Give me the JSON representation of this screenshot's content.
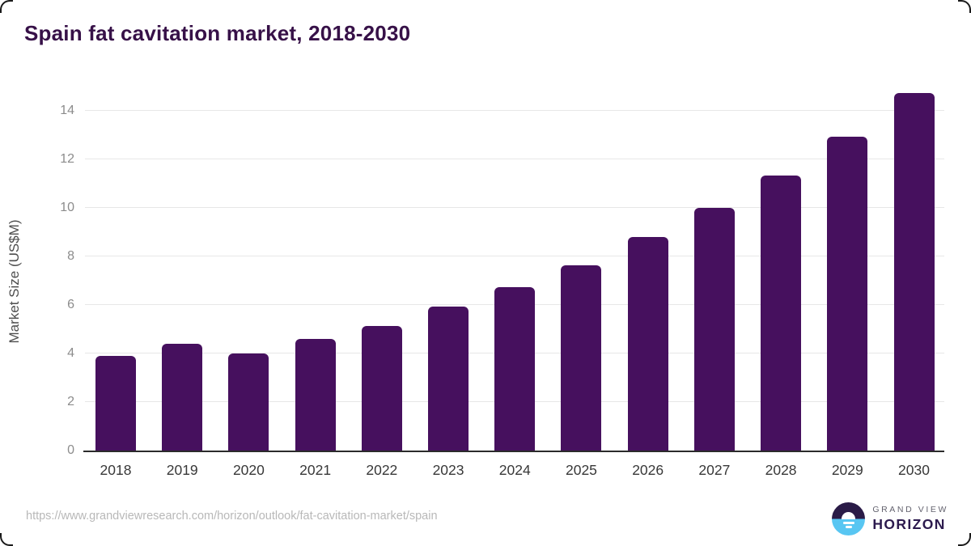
{
  "title": "Spain fat cavitation market, 2018-2030",
  "chart_data": {
    "type": "bar",
    "title": "Spain fat cavitation market, 2018-2030",
    "categories": [
      "2018",
      "2019",
      "2020",
      "2021",
      "2022",
      "2023",
      "2024",
      "2025",
      "2026",
      "2027",
      "2028",
      "2029",
      "2030"
    ],
    "values": [
      3.9,
      4.4,
      4.0,
      4.6,
      5.15,
      5.95,
      6.75,
      7.65,
      8.8,
      10.0,
      11.35,
      12.95,
      14.75
    ],
    "xlabel": "",
    "ylabel": "Market Size (US$M)",
    "ylim": [
      0,
      14
    ],
    "yticks": [
      0,
      2,
      4,
      6,
      8,
      10,
      12,
      14
    ],
    "grid": true,
    "legend": "none",
    "bar_color": "#46105e"
  },
  "colors": {
    "title": "#371148",
    "bar": "#46105e",
    "gridline": "#e7e7e7",
    "axis_line": "#2b2b2b",
    "y_tick": "#8c8c8c",
    "x_tick": "#383838",
    "url": "#b8b8b8",
    "logo_navy": "#2a1b47",
    "logo_blue": "#58c6f2"
  },
  "footer": {
    "source_url": "https://www.grandviewresearch.com/horizon/outlook/fat-cavitation-market/spain",
    "logo": {
      "icon": "sunset-horizon-icon",
      "line1": "GRAND VIEW",
      "line2": "HORIZON"
    }
  }
}
